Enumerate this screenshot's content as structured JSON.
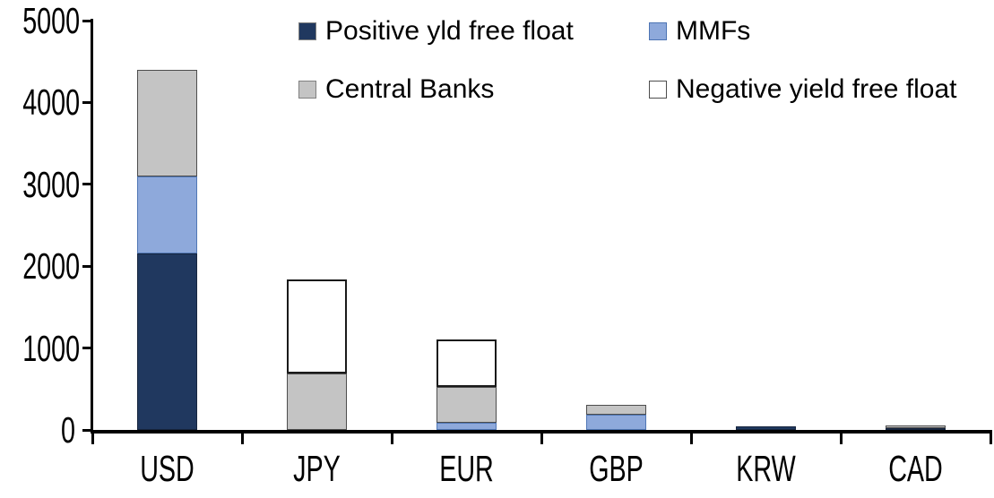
{
  "chart_data": {
    "type": "bar",
    "stacked": true,
    "title": "",
    "xlabel": "",
    "ylabel": "",
    "categories": [
      "USD",
      "JPY",
      "EUR",
      "GBP",
      "KRW",
      "CAD"
    ],
    "series": [
      {
        "name": "Positive yld free float",
        "color": "#20385F",
        "border": "#17263F",
        "swatch_border": "#808080",
        "values": [
          2150,
          0,
          0,
          0,
          40,
          25
        ]
      },
      {
        "name": "MMFs",
        "color": "#8EA9DB",
        "border": "#5077B5",
        "swatch_border": "#4D74B4",
        "values": [
          950,
          0,
          90,
          190,
          0,
          0
        ]
      },
      {
        "name": "Central Banks",
        "color": "#C4C4C4",
        "border": "#4D4D4D",
        "swatch_border": "#808080",
        "values": [
          1300,
          690,
          430,
          120,
          0,
          30
        ]
      },
      {
        "name": "Negative yield free float",
        "color": "#FFFFFF",
        "border": "#1A1A1A",
        "swatch_border": "#4D4D4D",
        "values": [
          0,
          1150,
          580,
          0,
          0,
          0
        ]
      }
    ],
    "ylim": [
      0,
      5000
    ],
    "yticks": [
      0,
      1000,
      2000,
      3000,
      4000,
      5000
    ],
    "grid": false,
    "legend_position": "top-inside",
    "legend_columns": 2,
    "axis_color": "#000000",
    "background_color": "#FFFFFF"
  }
}
